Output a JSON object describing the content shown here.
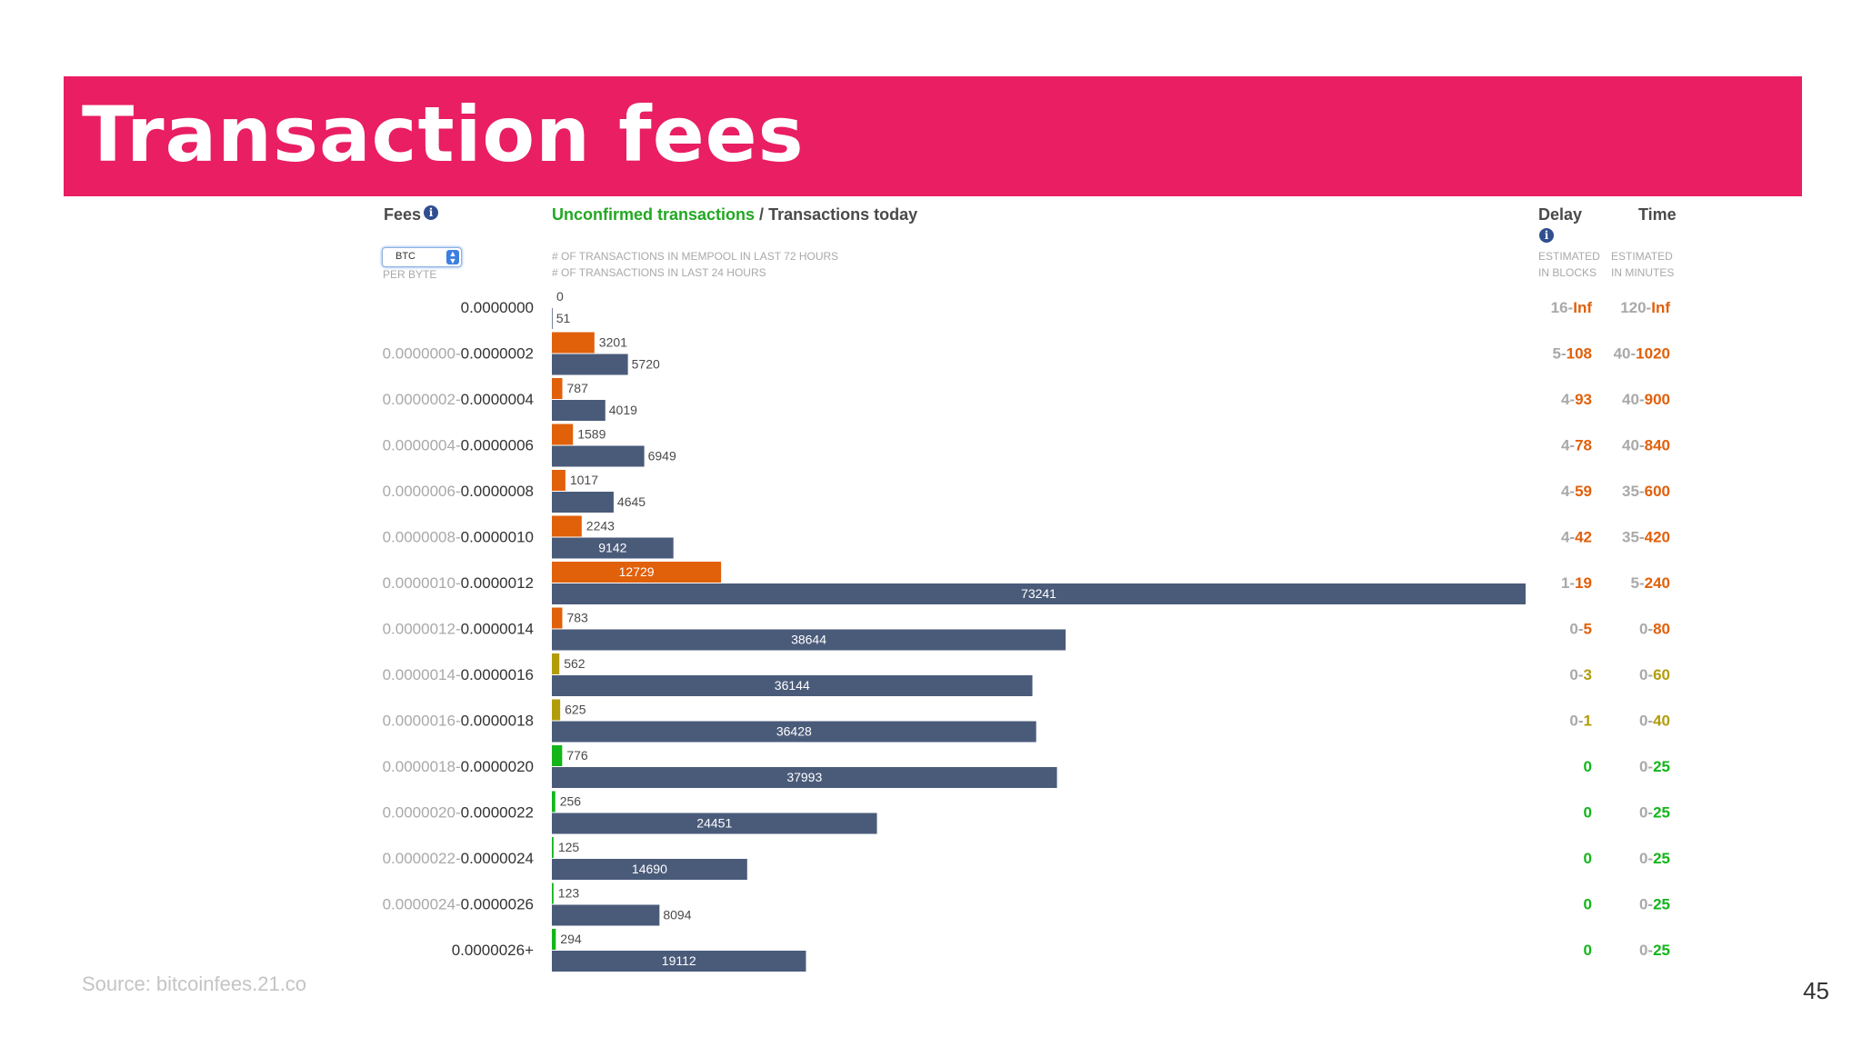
{
  "slide": {
    "title": "Transaction fees",
    "source": "Source: bitcoinfees.21.co",
    "page_number": "45"
  },
  "headers": {
    "fees": "Fees",
    "fees_info_icon": "info-icon",
    "unit_value": "BTC",
    "per_byte": "PER BYTE",
    "unconfirmed": "Unconfirmed transactions",
    "separator": " / ",
    "today": "Transactions today",
    "mempool_note": "# OF TRANSACTIONS IN MEMPOOL IN LAST 72 HOURS",
    "today_note": "# OF TRANSACTIONS IN LAST 24 HOURS",
    "delay": "Delay",
    "delay_sub1": "ESTIMATED",
    "delay_sub2": "IN BLOCKS",
    "time": "Time",
    "time_sub1": "ESTIMATED",
    "time_sub2": "IN MINUTES"
  },
  "colors": {
    "title_band": "#e91e63",
    "today_bar": "#4a5b7a",
    "orange": "#e1600a",
    "olive": "#b39c0a",
    "green": "#13b51b",
    "gray_text": "#a9a9a9",
    "dark_text": "#333333"
  },
  "chart_data": {
    "type": "bar",
    "orientation": "horizontal",
    "xlim": [
      0,
      73241
    ],
    "series": [
      {
        "name": "Unconfirmed transactions",
        "values": [
          0,
          3201,
          787,
          1589,
          1017,
          2243,
          12729,
          783,
          562,
          625,
          776,
          256,
          125,
          123,
          294
        ]
      },
      {
        "name": "Transactions today",
        "values": [
          51,
          5720,
          4019,
          6949,
          4645,
          9142,
          73241,
          38644,
          36144,
          36428,
          37993,
          24451,
          14690,
          8094,
          19112
        ]
      }
    ],
    "rows": [
      {
        "fee_lo": "",
        "fee_hi": "0.0000000",
        "status": "orange",
        "delay_lo": "16-",
        "delay_hi": "Inf",
        "time_lo": "120-",
        "time_hi": "Inf"
      },
      {
        "fee_lo": "0.0000000-",
        "fee_hi": "0.0000002",
        "status": "orange",
        "delay_lo": "5-",
        "delay_hi": "108",
        "time_lo": "40-",
        "time_hi": "1020"
      },
      {
        "fee_lo": "0.0000002-",
        "fee_hi": "0.0000004",
        "status": "orange",
        "delay_lo": "4-",
        "delay_hi": "93",
        "time_lo": "40-",
        "time_hi": "900"
      },
      {
        "fee_lo": "0.0000004-",
        "fee_hi": "0.0000006",
        "status": "orange",
        "delay_lo": "4-",
        "delay_hi": "78",
        "time_lo": "40-",
        "time_hi": "840"
      },
      {
        "fee_lo": "0.0000006-",
        "fee_hi": "0.0000008",
        "status": "orange",
        "delay_lo": "4-",
        "delay_hi": "59",
        "time_lo": "35-",
        "time_hi": "600"
      },
      {
        "fee_lo": "0.0000008-",
        "fee_hi": "0.0000010",
        "status": "orange",
        "delay_lo": "4-",
        "delay_hi": "42",
        "time_lo": "35-",
        "time_hi": "420"
      },
      {
        "fee_lo": "0.0000010-",
        "fee_hi": "0.0000012",
        "status": "orange",
        "delay_lo": "1-",
        "delay_hi": "19",
        "time_lo": "5-",
        "time_hi": "240"
      },
      {
        "fee_lo": "0.0000012-",
        "fee_hi": "0.0000014",
        "status": "orange",
        "delay_lo": "0-",
        "delay_hi": "5",
        "time_lo": "0-",
        "time_hi": "80"
      },
      {
        "fee_lo": "0.0000014-",
        "fee_hi": "0.0000016",
        "status": "olive",
        "delay_lo": "0-",
        "delay_hi": "3",
        "time_lo": "0-",
        "time_hi": "60"
      },
      {
        "fee_lo": "0.0000016-",
        "fee_hi": "0.0000018",
        "status": "olive",
        "delay_lo": "0-",
        "delay_hi": "1",
        "time_lo": "0-",
        "time_hi": "40"
      },
      {
        "fee_lo": "0.0000018-",
        "fee_hi": "0.0000020",
        "status": "green",
        "delay_lo": "",
        "delay_hi": "0",
        "time_lo": "0-",
        "time_hi": "25"
      },
      {
        "fee_lo": "0.0000020-",
        "fee_hi": "0.0000022",
        "status": "green",
        "delay_lo": "",
        "delay_hi": "0",
        "time_lo": "0-",
        "time_hi": "25"
      },
      {
        "fee_lo": "0.0000022-",
        "fee_hi": "0.0000024",
        "status": "green",
        "delay_lo": "",
        "delay_hi": "0",
        "time_lo": "0-",
        "time_hi": "25"
      },
      {
        "fee_lo": "0.0000024-",
        "fee_hi": "0.0000026",
        "status": "green",
        "delay_lo": "",
        "delay_hi": "0",
        "time_lo": "0-",
        "time_hi": "25"
      },
      {
        "fee_lo": "",
        "fee_hi": "0.0000026+",
        "status": "green",
        "delay_lo": "",
        "delay_hi": "0",
        "time_lo": "0-",
        "time_hi": "25"
      }
    ]
  }
}
